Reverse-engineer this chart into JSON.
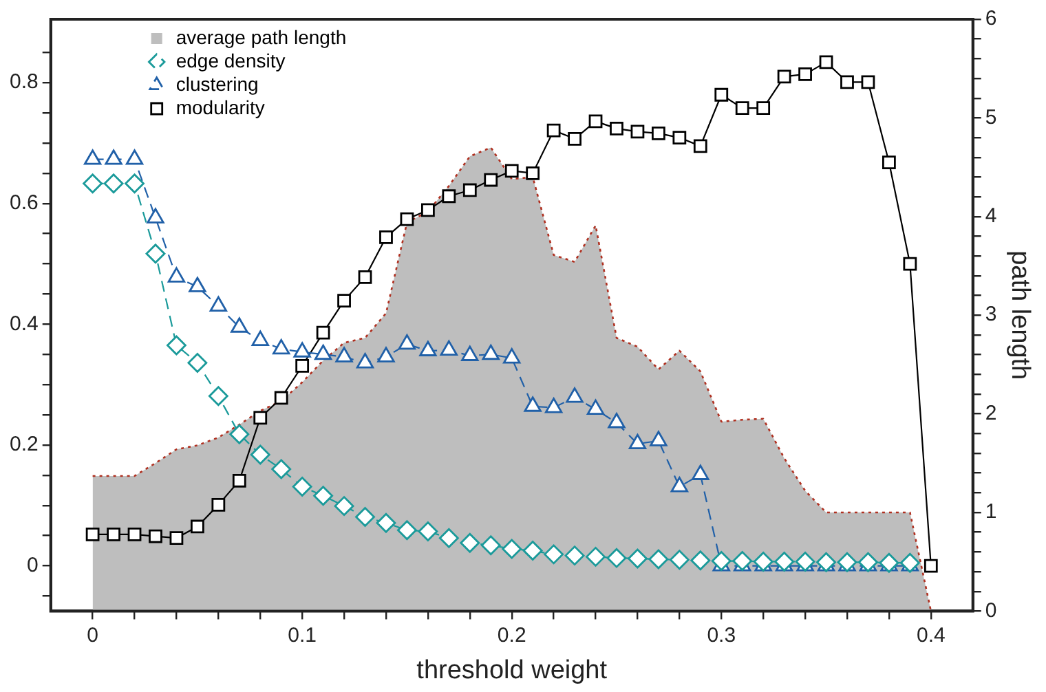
{
  "chart_data": {
    "type": "line",
    "xlabel": "threshold weight",
    "y2label": "path length",
    "x": [
      0,
      0.01,
      0.02,
      0.03,
      0.04,
      0.05,
      0.06,
      0.07,
      0.08,
      0.09,
      0.1,
      0.11,
      0.12,
      0.13,
      0.14,
      0.15,
      0.16,
      0.17,
      0.18,
      0.19,
      0.2,
      0.21,
      0.22,
      0.23,
      0.24,
      0.25,
      0.26,
      0.27,
      0.28,
      0.29,
      0.3,
      0.31,
      0.32,
      0.33,
      0.34,
      0.35,
      0.36,
      0.37,
      0.38,
      0.39,
      0.4
    ],
    "series": [
      {
        "name": "average path length",
        "type": "area",
        "axis": "y2",
        "color": "#bebebe",
        "line_style": "dotted",
        "marker": "none",
        "values": [
          1.37,
          1.37,
          1.37,
          1.5,
          1.64,
          1.68,
          1.76,
          1.89,
          2.03,
          2.13,
          2.32,
          2.54,
          2.72,
          2.77,
          3.02,
          3.94,
          4.05,
          4.31,
          4.61,
          4.7,
          4.38,
          4.4,
          3.61,
          3.54,
          3.91,
          2.77,
          2.68,
          2.45,
          2.64,
          2.43,
          1.92,
          1.94,
          1.95,
          1.55,
          1.22,
          1.0,
          1.0,
          1.0,
          1.0,
          1.0,
          0
        ]
      },
      {
        "name": "edge density",
        "color": "#1a9a9a",
        "line_style": "dashed",
        "marker": "diamond",
        "values": [
          0.633,
          0.633,
          0.633,
          0.517,
          0.365,
          0.336,
          0.281,
          0.218,
          0.184,
          0.16,
          0.131,
          0.116,
          0.099,
          0.081,
          0.071,
          0.059,
          0.057,
          0.046,
          0.038,
          0.034,
          0.028,
          0.025,
          0.019,
          0.017,
          0.015,
          0.013,
          0.012,
          0.011,
          0.01,
          0.009,
          0.008,
          0.008,
          0.007,
          0.007,
          0.007,
          0.006,
          0.006,
          0.006,
          0.005,
          0.005,
          null
        ]
      },
      {
        "name": "clustering",
        "color": "#2060a8",
        "line_style": "dashed",
        "marker": "triangle",
        "values": [
          0.673,
          0.673,
          0.673,
          0.576,
          0.478,
          0.462,
          0.43,
          0.395,
          0.373,
          0.359,
          0.354,
          0.35,
          0.346,
          0.336,
          0.346,
          0.367,
          0.356,
          0.357,
          0.348,
          0.35,
          0.344,
          0.264,
          0.262,
          0.279,
          0.259,
          0.237,
          0.202,
          0.207,
          0.131,
          0.151,
          0,
          0,
          0,
          0,
          0,
          0,
          0,
          0,
          0,
          0,
          null
        ]
      },
      {
        "name": "modularity",
        "color": "#000000",
        "line_style": "solid",
        "marker": "square",
        "values": [
          0.052,
          0.052,
          0.052,
          0.049,
          0.046,
          0.065,
          0.101,
          0.141,
          0.245,
          0.278,
          0.331,
          0.386,
          0.439,
          0.478,
          0.544,
          0.574,
          0.589,
          0.612,
          0.622,
          0.639,
          0.654,
          0.65,
          0.721,
          0.707,
          0.736,
          0.724,
          0.719,
          0.716,
          0.709,
          0.695,
          0.78,
          0.758,
          0.758,
          0.81,
          0.814,
          0.834,
          0.801,
          0.801,
          0.668,
          0.5,
          0
        ]
      }
    ],
    "xlim": [
      -0.02,
      0.42
    ],
    "xticks": [
      0,
      {
        "value": 0.02,
        "label": null
      },
      {
        "value": 0.04,
        "label": null
      },
      {
        "value": 0.06,
        "label": null
      },
      {
        "value": 0.08,
        "label": null
      },
      {
        "value": 0.1,
        "label": "0.1"
      },
      {
        "value": 0.12,
        "label": null
      },
      {
        "value": 0.14,
        "label": null
      },
      {
        "value": 0.16,
        "label": null
      },
      {
        "value": 0.18,
        "label": null
      },
      {
        "value": 0.2,
        "label": "0.2"
      },
      {
        "value": 0.22,
        "label": null
      },
      {
        "value": 0.24,
        "label": null
      },
      {
        "value": 0.26,
        "label": null
      },
      {
        "value": 0.28,
        "label": null
      },
      {
        "value": 0.3,
        "label": "0.3"
      },
      {
        "value": 0.32,
        "label": null
      },
      {
        "value": 0.34,
        "label": null
      },
      {
        "value": 0.36,
        "label": null
      },
      {
        "value": 0.38,
        "label": null
      },
      {
        "value": 0.4,
        "label": "0.4"
      }
    ],
    "ylim": [
      -0.075,
      0.905
    ],
    "yticks": [
      {
        "value": -0.05,
        "label": null
      },
      0,
      {
        "value": 0.05,
        "label": null
      },
      {
        "value": 0.1,
        "label": null
      },
      {
        "value": 0.15,
        "label": null
      },
      {
        "value": 0.2,
        "label": "0.2"
      },
      {
        "value": 0.25,
        "label": null
      },
      {
        "value": 0.3,
        "label": null
      },
      {
        "value": 0.35,
        "label": null
      },
      {
        "value": 0.4,
        "label": "0.4"
      },
      {
        "value": 0.45,
        "label": null
      },
      {
        "value": 0.5,
        "label": null
      },
      {
        "value": 0.55,
        "label": null
      },
      {
        "value": 0.6,
        "label": "0.6"
      },
      {
        "value": 0.65,
        "label": null
      },
      {
        "value": 0.7,
        "label": null
      },
      {
        "value": 0.75,
        "label": null
      },
      {
        "value": 0.8,
        "label": "0.8"
      },
      {
        "value": 0.85,
        "label": null
      }
    ],
    "y2lim": [
      0,
      6
    ],
    "y2ticks": [
      0,
      {
        "value": 0.2,
        "label": null
      },
      {
        "value": 0.4,
        "label": null
      },
      {
        "value": 0.6,
        "label": null
      },
      {
        "value": 0.8,
        "label": null
      },
      1,
      {
        "value": 1.2,
        "label": null
      },
      {
        "value": 1.4,
        "label": null
      },
      {
        "value": 1.6,
        "label": null
      },
      {
        "value": 1.8,
        "label": null
      },
      2,
      {
        "value": 2.2,
        "label": null
      },
      {
        "value": 2.4,
        "label": null
      },
      {
        "value": 2.6,
        "label": null
      },
      {
        "value": 2.8,
        "label": null
      },
      3,
      {
        "value": 3.2,
        "label": null
      },
      {
        "value": 3.4,
        "label": null
      },
      {
        "value": 3.6,
        "label": null
      },
      {
        "value": 3.8,
        "label": null
      },
      4,
      {
        "value": 4.2,
        "label": null
      },
      {
        "value": 4.4,
        "label": null
      },
      {
        "value": 4.6,
        "label": null
      },
      {
        "value": 4.8,
        "label": null
      },
      5,
      {
        "value": 5.2,
        "label": null
      },
      {
        "value": 5.4,
        "label": null
      },
      {
        "value": 5.6,
        "label": null
      },
      {
        "value": 5.8,
        "label": null
      },
      6
    ],
    "grid": false,
    "legend": "top left"
  }
}
